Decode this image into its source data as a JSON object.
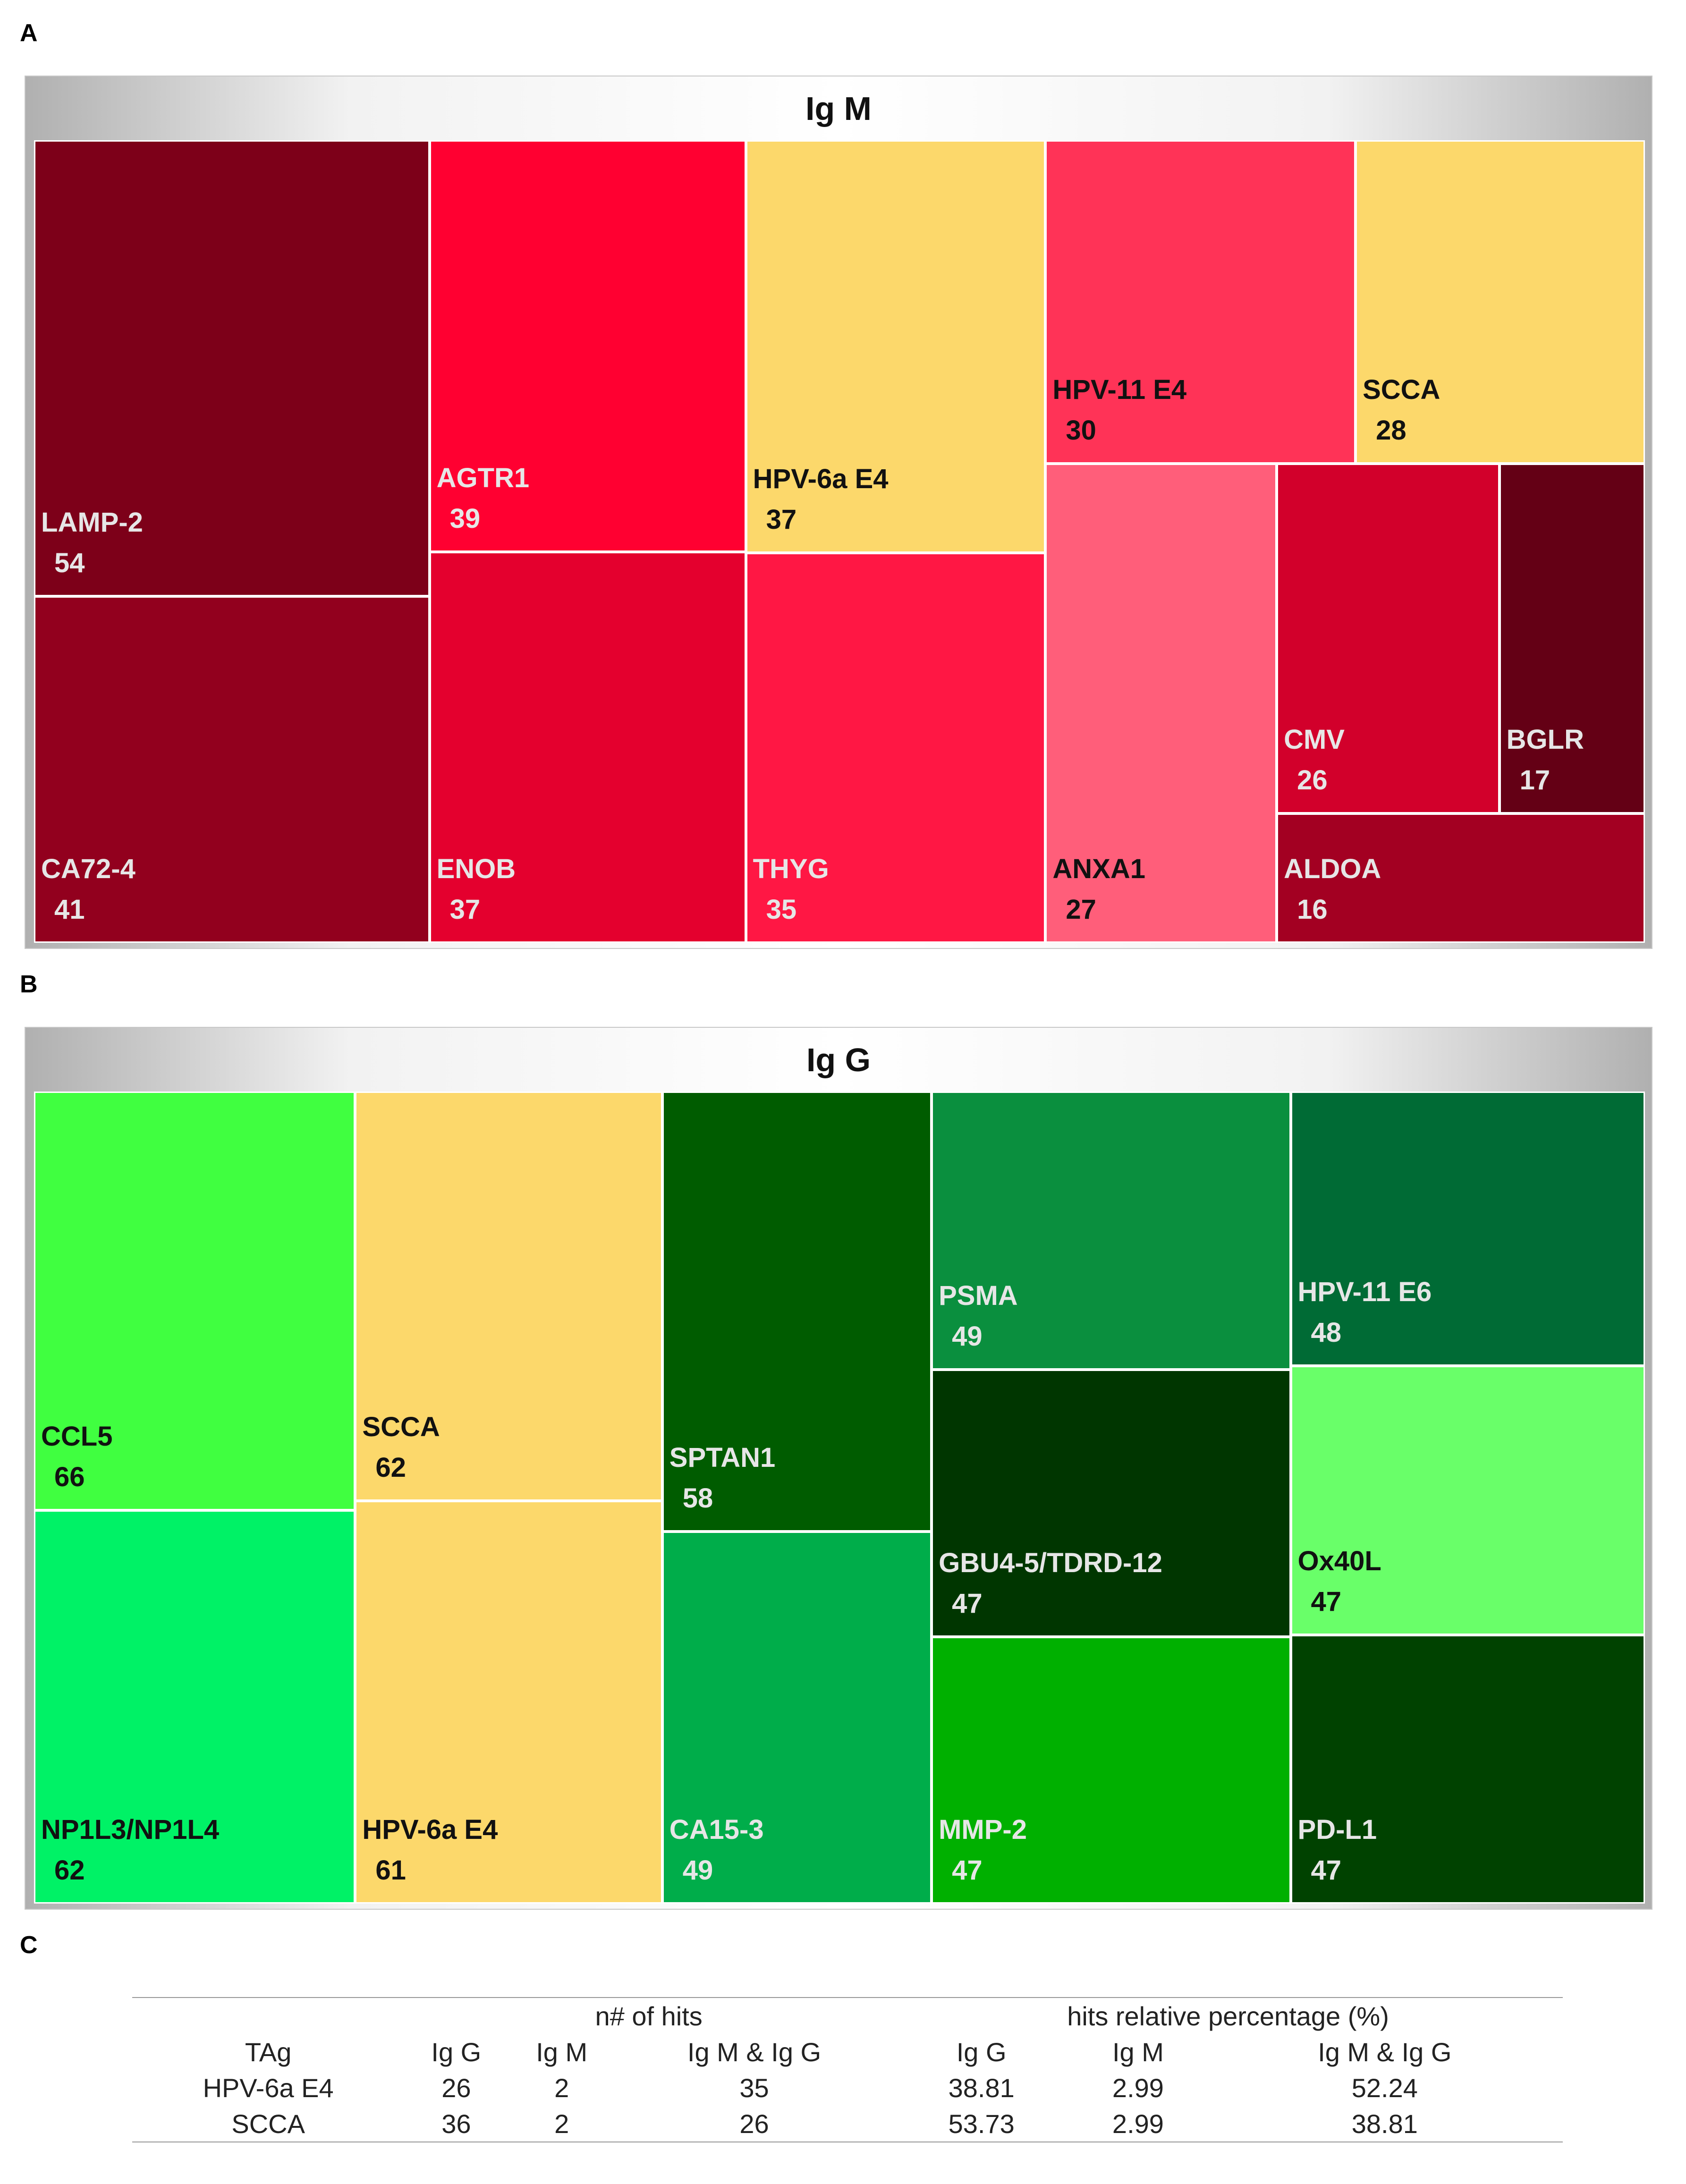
{
  "panels": {
    "a": "A",
    "b": "B",
    "c": "C"
  },
  "chart_data": [
    {
      "type": "treemap",
      "title": "Ig M",
      "items": [
        {
          "name": "LAMP-2",
          "value": 54,
          "color": "#7d0019"
        },
        {
          "name": "CA72-4",
          "value": 41,
          "color": "#92001e"
        },
        {
          "name": "AGTR1",
          "value": 39,
          "color": "#ff0031"
        },
        {
          "name": "ENOB",
          "value": 37,
          "color": "#e4002e"
        },
        {
          "name": "HPV-6a E4",
          "value": 37,
          "color": "#fcd86b"
        },
        {
          "name": "THYG",
          "value": 35,
          "color": "#ff1744"
        },
        {
          "name": "HPV-11 E4",
          "value": 30,
          "color": "#ff3357"
        },
        {
          "name": "SCCA",
          "value": 28,
          "color": "#fcd86b"
        },
        {
          "name": "ANXA1",
          "value": 27,
          "color": "#ff5e7a"
        },
        {
          "name": "CMV",
          "value": 26,
          "color": "#d2002b"
        },
        {
          "name": "BGLR",
          "value": 17,
          "color": "#640015"
        },
        {
          "name": "ALDOA",
          "value": 16,
          "color": "#a30022"
        }
      ]
    },
    {
      "type": "treemap",
      "title": "Ig G",
      "items": [
        {
          "name": "CCL5",
          "value": 66,
          "color": "#40ff40"
        },
        {
          "name": "NP1L3/NP1L4",
          "value": 62,
          "color": "#00f266"
        },
        {
          "name": "SCCA",
          "value": 62,
          "color": "#fcd86b"
        },
        {
          "name": "HPV-6a E4",
          "value": 61,
          "color": "#fcd86b"
        },
        {
          "name": "SPTAN1",
          "value": 58,
          "color": "#005c00"
        },
        {
          "name": "CA15-3",
          "value": 49,
          "color": "#00ad4a"
        },
        {
          "name": "PSMA",
          "value": 49,
          "color": "#0a8f3e"
        },
        {
          "name": "HPV-11 E6",
          "value": 48,
          "color": "#006b35"
        },
        {
          "name": "GBU4-5/TDRD-12",
          "value": 47,
          "color": "#003600"
        },
        {
          "name": "Ox40L",
          "value": 47,
          "color": "#69ff69"
        },
        {
          "name": "MMP-2",
          "value": 47,
          "color": "#00b000"
        },
        {
          "name": "PD-L1",
          "value": 47,
          "color": "#004200"
        }
      ]
    },
    {
      "type": "table",
      "group_headers": [
        "n# of hits",
        "hits relative percentage (%)"
      ],
      "columns": [
        "TAg",
        "Ig G",
        "Ig M",
        "Ig M & Ig G",
        "Ig G",
        "Ig M",
        "Ig M & Ig G"
      ],
      "rows": [
        [
          "HPV-6a E4",
          "26",
          "2",
          "35",
          "38.81",
          "2.99",
          "52.24"
        ],
        [
          "SCCA",
          "36",
          "2",
          "26",
          "53.73",
          "2.99",
          "38.81"
        ]
      ]
    }
  ]
}
